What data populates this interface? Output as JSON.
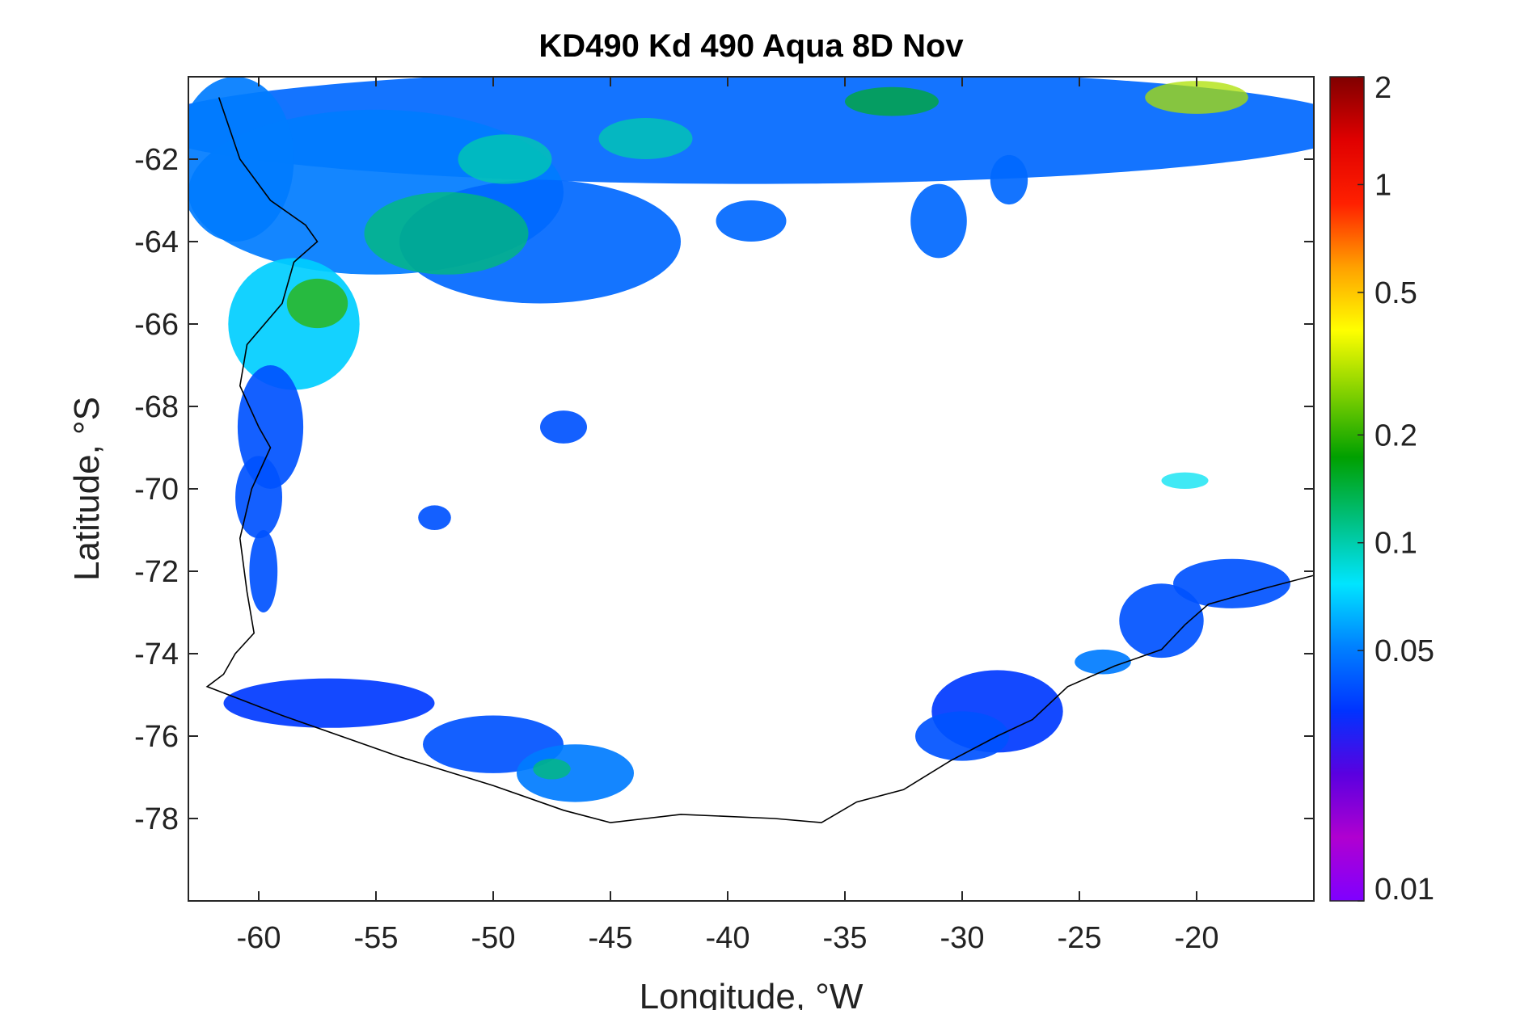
{
  "chart_data": {
    "type": "heatmap",
    "title": "KD490 Kd 490 Aqua 8D Nov",
    "xlabel": "Longitude, °W",
    "ylabel": "Latitude, °S",
    "xlim": [
      -63,
      -15
    ],
    "ylim": [
      -80,
      -60
    ],
    "xticks": [
      -60,
      -55,
      -50,
      -45,
      -40,
      -35,
      -30,
      -25,
      -20
    ],
    "xtick_labels": [
      "-60",
      "-55",
      "-50",
      "-45",
      "-40",
      "-35",
      "-30",
      "-25",
      "-20"
    ],
    "yticks": [
      -62,
      -64,
      -66,
      -68,
      -70,
      -72,
      -74,
      -76,
      -78
    ],
    "ytick_labels": [
      "-62",
      "-64",
      "-66",
      "-68",
      "-70",
      "-72",
      "-74",
      "-76",
      "-78"
    ],
    "colorbar": {
      "scale": "log",
      "range": [
        0.01,
        2
      ],
      "ticks": [
        0.01,
        0.05,
        0.1,
        0.2,
        0.5,
        1,
        2
      ],
      "tick_labels": [
        "0.01",
        "0.05",
        "0.1",
        "0.2",
        "0.5",
        "1",
        "2"
      ],
      "colormap": [
        "#7f00ff",
        "#b000d0",
        "#5a00e0",
        "#0033ff",
        "#0080ff",
        "#00e5ff",
        "#00c080",
        "#00a000",
        "#80d000",
        "#ffff00",
        "#ffa000",
        "#ff2000",
        "#e00000",
        "#800000"
      ]
    },
    "coastline": [
      [
        -61.7,
        -60.5
      ],
      [
        -60.8,
        -62.0
      ],
      [
        -59.5,
        -63.0
      ],
      [
        -58.0,
        -63.6
      ],
      [
        -57.5,
        -64.0
      ],
      [
        -58.5,
        -64.5
      ],
      [
        -59.0,
        -65.5
      ],
      [
        -60.5,
        -66.5
      ],
      [
        -60.8,
        -67.5
      ],
      [
        -60.0,
        -68.5
      ],
      [
        -59.5,
        -69.0
      ],
      [
        -60.3,
        -70.0
      ],
      [
        -60.8,
        -71.2
      ],
      [
        -60.5,
        -72.5
      ],
      [
        -60.2,
        -73.5
      ],
      [
        -61.0,
        -74.0
      ],
      [
        -61.5,
        -74.5
      ],
      [
        -62.2,
        -74.8
      ],
      [
        -59.0,
        -75.5
      ],
      [
        -54.0,
        -76.5
      ],
      [
        -50.0,
        -77.2
      ],
      [
        -47.0,
        -77.8
      ],
      [
        -45.0,
        -78.1
      ],
      [
        -42.0,
        -77.9
      ],
      [
        -38.0,
        -78.0
      ],
      [
        -36.0,
        -78.1
      ],
      [
        -34.5,
        -77.6
      ],
      [
        -32.5,
        -77.3
      ],
      [
        -30.5,
        -76.6
      ],
      [
        -28.5,
        -76.0
      ],
      [
        -27.0,
        -75.6
      ],
      [
        -25.5,
        -74.8
      ],
      [
        -23.5,
        -74.3
      ],
      [
        -21.5,
        -73.9
      ],
      [
        -20.5,
        -73.3
      ],
      [
        -19.5,
        -72.8
      ],
      [
        -17.0,
        -72.4
      ],
      [
        -15.0,
        -72.1
      ]
    ],
    "data_patches": [
      {
        "lon": -39,
        "lat": -61.2,
        "rlon": 26,
        "rlat": 1.4,
        "value": 0.045
      },
      {
        "lon": -55,
        "lat": -62.8,
        "rlon": 8,
        "rlat": 2.0,
        "value": 0.05
      },
      {
        "lon": -61,
        "lat": -62.0,
        "rlon": 2.5,
        "rlat": 2.0,
        "value": 0.05
      },
      {
        "lon": -48,
        "lat": -64.0,
        "rlon": 6,
        "rlat": 1.5,
        "value": 0.045
      },
      {
        "lon": -58.5,
        "lat": -66.0,
        "rlon": 2.8,
        "rlat": 1.6,
        "value": 0.07
      },
      {
        "lon": -59.5,
        "lat": -68.5,
        "rlon": 1.4,
        "rlat": 1.5,
        "value": 0.04
      },
      {
        "lon": -60.0,
        "lat": -70.2,
        "rlon": 1.0,
        "rlat": 1.0,
        "value": 0.04
      },
      {
        "lon": -59.8,
        "lat": -72.0,
        "rlon": 0.6,
        "rlat": 1.0,
        "value": 0.04
      },
      {
        "lon": -57.0,
        "lat": -75.2,
        "rlon": 4.5,
        "rlat": 0.6,
        "value": 0.035
      },
      {
        "lon": -50.0,
        "lat": -76.2,
        "rlon": 3.0,
        "rlat": 0.7,
        "value": 0.04
      },
      {
        "lon": -46.5,
        "lat": -76.9,
        "rlon": 2.5,
        "rlat": 0.7,
        "value": 0.05
      },
      {
        "lon": -28.5,
        "lat": -75.4,
        "rlon": 2.8,
        "rlat": 1.0,
        "value": 0.035
      },
      {
        "lon": -30.0,
        "lat": -76.0,
        "rlon": 2.0,
        "rlat": 0.6,
        "value": 0.04
      },
      {
        "lon": -21.5,
        "lat": -73.2,
        "rlon": 1.8,
        "rlat": 0.9,
        "value": 0.04
      },
      {
        "lon": -18.5,
        "lat": -72.3,
        "rlon": 2.5,
        "rlat": 0.6,
        "value": 0.04
      },
      {
        "lon": -24.0,
        "lat": -74.2,
        "rlon": 1.2,
        "rlat": 0.3,
        "value": 0.05
      },
      {
        "lon": -52.5,
        "lat": -70.7,
        "rlon": 0.7,
        "rlat": 0.3,
        "value": 0.04
      },
      {
        "lon": -47.0,
        "lat": -68.5,
        "rlon": 1.0,
        "rlat": 0.4,
        "value": 0.04
      },
      {
        "lon": -39.0,
        "lat": -63.5,
        "rlon": 1.5,
        "rlat": 0.5,
        "value": 0.045
      },
      {
        "lon": -31.0,
        "lat": -63.5,
        "rlon": 1.2,
        "rlat": 0.9,
        "value": 0.045
      },
      {
        "lon": -28.0,
        "lat": -62.5,
        "rlon": 0.8,
        "rlat": 0.6,
        "value": 0.045
      }
    ],
    "enhanced_patches": [
      {
        "lon": -52,
        "lat": -63.8,
        "rlon": 3.5,
        "rlat": 1.0,
        "value": 0.12
      },
      {
        "lon": -57.5,
        "lat": -65.5,
        "rlon": 1.3,
        "rlat": 0.6,
        "value": 0.2
      },
      {
        "lon": -49.5,
        "lat": -62.0,
        "rlon": 2.0,
        "rlat": 0.6,
        "value": 0.1
      },
      {
        "lon": -43.5,
        "lat": -61.5,
        "rlon": 2.0,
        "rlat": 0.5,
        "value": 0.1
      },
      {
        "lon": -20.0,
        "lat": -60.5,
        "rlon": 2.2,
        "rlat": 0.4,
        "value": 0.3
      },
      {
        "lon": -33.0,
        "lat": -60.6,
        "rlon": 2.0,
        "rlat": 0.35,
        "value": 0.15
      },
      {
        "lon": -47.5,
        "lat": -76.8,
        "rlon": 0.8,
        "rlat": 0.25,
        "value": 0.12
      },
      {
        "lon": -20.5,
        "lat": -69.8,
        "rlon": 1.0,
        "rlat": 0.2,
        "value": 0.08
      }
    ]
  }
}
